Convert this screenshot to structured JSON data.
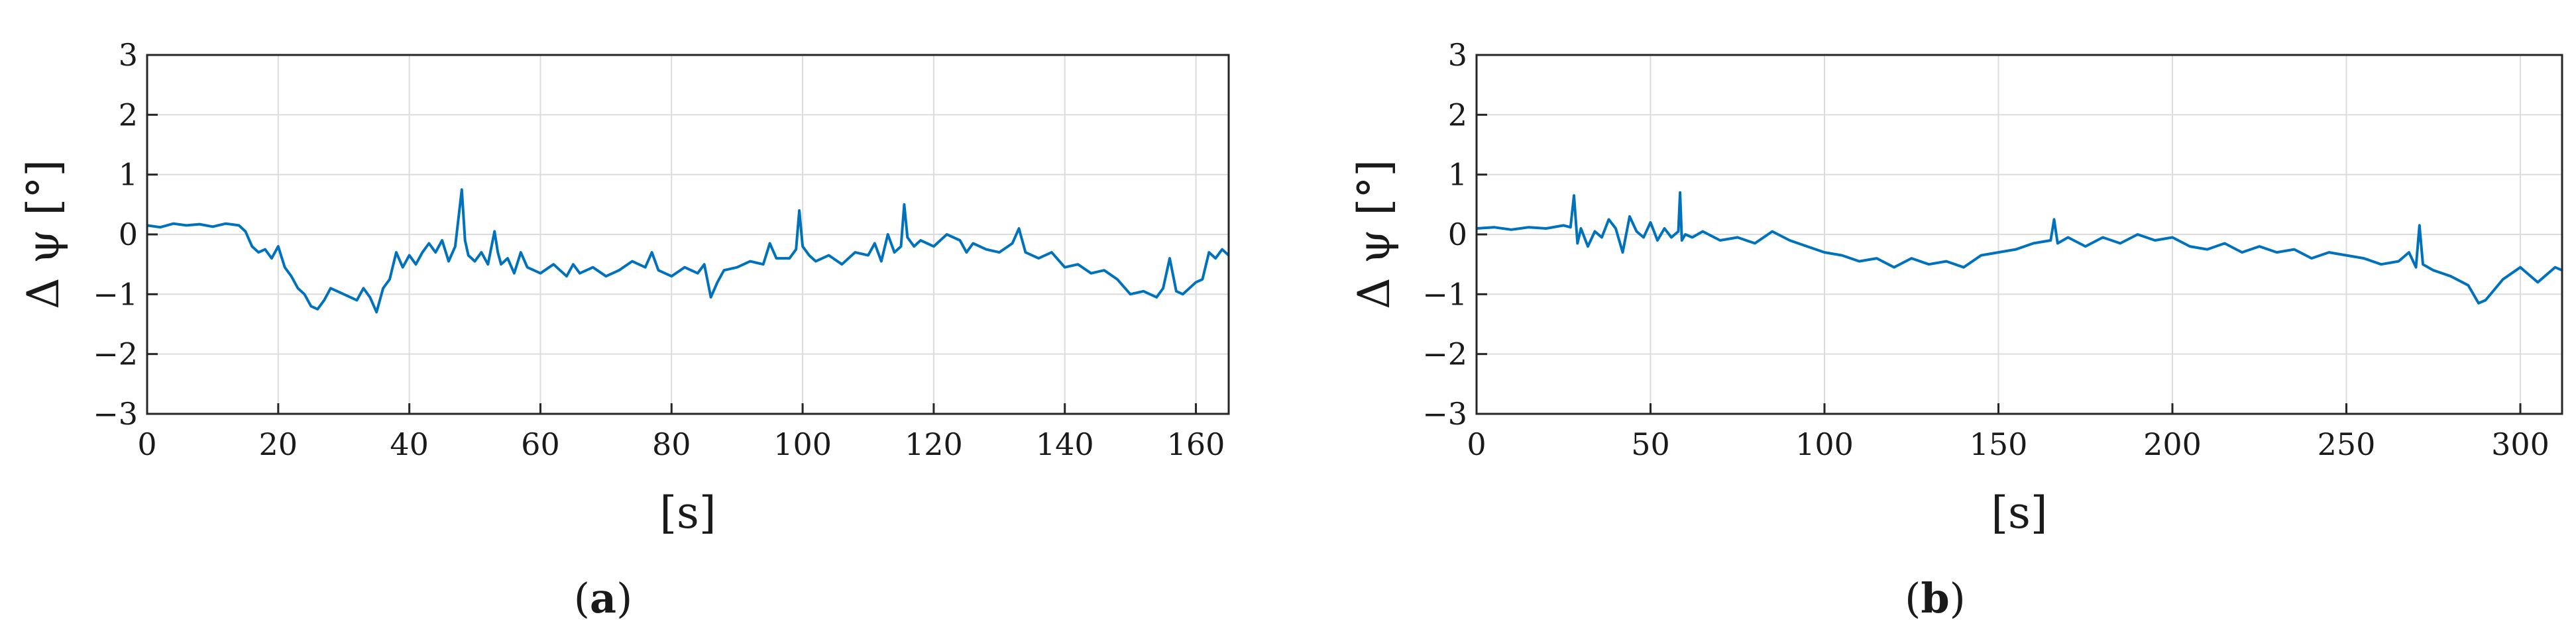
{
  "figure": {
    "captions": [
      {
        "open": "(",
        "letter": "a",
        "close": ")"
      },
      {
        "open": "(",
        "letter": "b",
        "close": ")"
      }
    ]
  },
  "chart_data": [
    {
      "type": "line",
      "title": "",
      "xlabel": "[s]",
      "ylabel": "Δ ψ [°]",
      "xlim": [
        0,
        165
      ],
      "ylim": [
        -3,
        3
      ],
      "xticks": [
        0,
        20,
        40,
        60,
        80,
        100,
        120,
        140,
        160
      ],
      "yticks": [
        -3,
        -2,
        -1,
        0,
        1,
        2,
        3
      ],
      "grid": true,
      "color": "#0072BD",
      "series": [
        {
          "x": [
            0,
            2,
            4,
            6,
            8,
            10,
            12,
            14,
            15,
            16,
            17,
            18,
            19,
            20,
            21,
            22,
            23,
            24,
            25,
            26,
            27,
            28,
            30,
            32,
            33,
            34,
            35,
            36,
            37,
            38,
            39,
            40,
            41,
            42,
            43,
            44,
            45,
            46,
            47,
            48,
            48.5,
            49,
            50,
            51,
            52,
            53,
            53.5,
            54,
            55,
            56,
            57,
            58,
            60,
            62,
            64,
            65,
            66,
            68,
            70,
            72,
            74,
            76,
            77,
            78,
            80,
            82,
            84,
            85,
            86,
            87,
            88,
            90,
            92,
            94,
            95,
            96,
            98,
            99,
            99.5,
            100,
            101,
            102,
            104,
            106,
            108,
            110,
            111,
            112,
            113,
            114,
            115,
            115.5,
            116,
            117,
            118,
            120,
            122,
            124,
            125,
            126,
            128,
            130,
            132,
            133,
            134,
            136,
            138,
            140,
            142,
            144,
            146,
            148,
            150,
            152,
            154,
            155,
            156,
            157,
            158,
            160,
            161,
            162,
            163,
            164,
            165
          ],
          "y": [
            0.15,
            0.12,
            0.18,
            0.15,
            0.17,
            0.13,
            0.18,
            0.15,
            0.05,
            -0.2,
            -0.3,
            -0.25,
            -0.4,
            -0.2,
            -0.55,
            -0.7,
            -0.9,
            -1.0,
            -1.2,
            -1.25,
            -1.1,
            -0.9,
            -1.0,
            -1.1,
            -0.9,
            -1.05,
            -1.3,
            -0.9,
            -0.75,
            -0.3,
            -0.55,
            -0.35,
            -0.5,
            -0.3,
            -0.15,
            -0.3,
            -0.1,
            -0.45,
            -0.2,
            0.75,
            -0.1,
            -0.35,
            -0.45,
            -0.3,
            -0.5,
            0.05,
            -0.3,
            -0.5,
            -0.4,
            -0.65,
            -0.3,
            -0.55,
            -0.65,
            -0.5,
            -0.7,
            -0.5,
            -0.65,
            -0.55,
            -0.7,
            -0.6,
            -0.45,
            -0.55,
            -0.3,
            -0.6,
            -0.7,
            -0.55,
            -0.65,
            -0.5,
            -1.05,
            -0.8,
            -0.6,
            -0.55,
            -0.45,
            -0.5,
            -0.15,
            -0.4,
            -0.4,
            -0.25,
            0.4,
            -0.2,
            -0.35,
            -0.45,
            -0.35,
            -0.5,
            -0.3,
            -0.35,
            -0.15,
            -0.45,
            0.0,
            -0.3,
            -0.2,
            0.5,
            -0.05,
            -0.2,
            -0.1,
            -0.2,
            0.0,
            -0.1,
            -0.3,
            -0.15,
            -0.25,
            -0.3,
            -0.15,
            0.1,
            -0.3,
            -0.4,
            -0.3,
            -0.55,
            -0.5,
            -0.65,
            -0.6,
            -0.75,
            -1.0,
            -0.95,
            -1.05,
            -0.9,
            -0.4,
            -0.95,
            -1.0,
            -0.8,
            -0.75,
            -0.3,
            -0.4,
            -0.25,
            -0.35
          ]
        }
      ]
    },
    {
      "type": "line",
      "title": "",
      "xlabel": "[s]",
      "ylabel": "Δ ψ [°]",
      "xlim": [
        0,
        312
      ],
      "ylim": [
        -3,
        3
      ],
      "xticks": [
        0,
        50,
        100,
        150,
        200,
        250,
        300
      ],
      "yticks": [
        -3,
        -2,
        -1,
        0,
        1,
        2,
        3
      ],
      "grid": true,
      "color": "#0072BD",
      "series": [
        {
          "x": [
            0,
            5,
            10,
            15,
            20,
            25,
            27,
            28,
            29,
            30,
            32,
            34,
            36,
            38,
            40,
            42,
            44,
            46,
            48,
            50,
            52,
            54,
            56,
            58,
            58.5,
            59,
            60,
            62,
            65,
            70,
            75,
            80,
            85,
            90,
            95,
            100,
            105,
            110,
            115,
            120,
            125,
            130,
            135,
            140,
            145,
            150,
            155,
            160,
            165,
            166,
            167,
            170,
            175,
            180,
            185,
            190,
            195,
            200,
            205,
            210,
            215,
            220,
            225,
            230,
            235,
            240,
            245,
            250,
            255,
            260,
            265,
            268,
            270,
            271,
            272,
            275,
            280,
            285,
            288,
            290,
            295,
            300,
            305,
            310,
            312
          ],
          "y": [
            0.1,
            0.12,
            0.08,
            0.12,
            0.1,
            0.15,
            0.12,
            0.65,
            -0.15,
            0.1,
            -0.2,
            0.05,
            -0.05,
            0.25,
            0.1,
            -0.3,
            0.3,
            0.05,
            -0.05,
            0.2,
            -0.1,
            0.1,
            -0.05,
            0.05,
            0.7,
            -0.1,
            0.0,
            -0.05,
            0.05,
            -0.1,
            -0.05,
            -0.15,
            0.05,
            -0.1,
            -0.2,
            -0.3,
            -0.35,
            -0.45,
            -0.4,
            -0.55,
            -0.4,
            -0.5,
            -0.45,
            -0.55,
            -0.35,
            -0.3,
            -0.25,
            -0.15,
            -0.1,
            0.25,
            -0.15,
            -0.05,
            -0.2,
            -0.05,
            -0.15,
            0.0,
            -0.1,
            -0.05,
            -0.2,
            -0.25,
            -0.15,
            -0.3,
            -0.2,
            -0.3,
            -0.25,
            -0.4,
            -0.3,
            -0.35,
            -0.4,
            -0.5,
            -0.45,
            -0.3,
            -0.55,
            0.15,
            -0.5,
            -0.6,
            -0.7,
            -0.85,
            -1.15,
            -1.1,
            -0.75,
            -0.55,
            -0.8,
            -0.55,
            -0.6
          ]
        }
      ]
    }
  ]
}
